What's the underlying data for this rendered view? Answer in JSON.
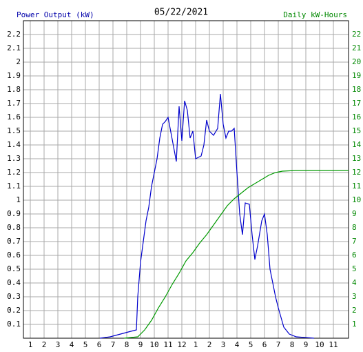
{
  "chart_data": {
    "type": "line",
    "title": "05/22/2021",
    "y_label": "Power Output (kW)",
    "y2_label": "Daily kW-Hours",
    "xlim": [
      0.5,
      24.1
    ],
    "xticks": [
      1,
      2,
      3,
      4,
      5,
      6,
      7,
      8,
      9,
      10,
      11,
      12,
      {
        "value": 13,
        "label": "1"
      },
      {
        "value": 14,
        "label": "2"
      },
      {
        "value": 15,
        "label": "3"
      },
      {
        "value": 16,
        "label": "4"
      },
      {
        "value": 17,
        "label": "5"
      },
      {
        "value": 18,
        "label": "6"
      },
      {
        "value": 19,
        "label": "7"
      },
      {
        "value": 20,
        "label": "8"
      },
      {
        "value": 21,
        "label": "9"
      },
      {
        "value": 22,
        "label": "10"
      },
      {
        "value": 23,
        "label": "11"
      }
    ],
    "ylim": [
      0,
      2.3
    ],
    "yticks": [
      0.1,
      0.2,
      0.3,
      0.4,
      0.5,
      0.6,
      0.7,
      0.8,
      0.9,
      1.0,
      1.1,
      1.2,
      1.3,
      1.4,
      1.5,
      1.6,
      1.7,
      1.8,
      1.9,
      2.0,
      2.1,
      2.2
    ],
    "y2lim": [
      0,
      23
    ],
    "y2ticks": [
      1,
      2,
      3,
      4,
      5,
      6,
      7,
      8,
      9,
      10,
      11,
      12,
      13,
      14,
      15,
      16,
      17,
      18,
      19,
      20,
      21,
      22
    ],
    "grid": true,
    "series": [
      {
        "color": "#0000cc",
        "x": [
          6.05,
          6.8,
          7.55,
          8.3,
          8.7,
          8.8,
          9.0,
          9.2,
          9.4,
          9.6,
          9.8,
          10.0,
          10.2,
          10.4,
          10.6,
          10.8,
          11.0,
          11.6,
          11.8,
          12.0,
          12.2,
          12.4,
          12.6,
          12.8,
          13.0,
          13.4,
          13.6,
          13.8,
          14.0,
          14.3,
          14.6,
          14.8,
          15.0,
          15.2,
          15.4,
          15.6,
          15.8,
          16.0,
          16.2,
          16.4,
          16.6,
          16.9,
          17.1,
          17.3,
          17.5,
          17.8,
          18.0,
          18.2,
          18.4,
          18.6,
          18.8,
          19.0,
          19.2,
          19.4,
          19.8,
          20.3,
          21.6
        ],
        "values": [
          0,
          0.01,
          0.03,
          0.05,
          0.06,
          0.3,
          0.55,
          0.7,
          0.85,
          0.95,
          1.1,
          1.2,
          1.3,
          1.45,
          1.55,
          1.57,
          1.6,
          1.28,
          1.68,
          1.43,
          1.72,
          1.65,
          1.45,
          1.5,
          1.3,
          1.32,
          1.4,
          1.58,
          1.5,
          1.47,
          1.52,
          1.77,
          1.55,
          1.45,
          1.5,
          1.5,
          1.52,
          1.2,
          0.9,
          0.75,
          0.98,
          0.97,
          0.75,
          0.57,
          0.67,
          0.85,
          0.9,
          0.75,
          0.5,
          0.4,
          0.3,
          0.22,
          0.15,
          0.08,
          0.03,
          0.01,
          0
        ]
      },
      {
        "color": "#009900",
        "axis": "y2",
        "x": [
          7.8,
          8.8,
          9.3,
          9.8,
          10.3,
          10.8,
          11.3,
          11.8,
          12.3,
          12.8,
          13.3,
          13.8,
          14.3,
          14.8,
          15.3,
          15.8,
          16.3,
          16.8,
          17.3,
          17.8,
          18.3,
          18.8,
          19.3,
          20.3,
          24.1
        ],
        "values": [
          0,
          0.1,
          0.6,
          1.3,
          2.2,
          3.0,
          3.9,
          4.7,
          5.6,
          6.2,
          6.9,
          7.5,
          8.2,
          8.9,
          9.6,
          10.1,
          10.5,
          10.9,
          11.2,
          11.5,
          11.8,
          12.0,
          12.1,
          12.15,
          12.15
        ]
      }
    ]
  }
}
